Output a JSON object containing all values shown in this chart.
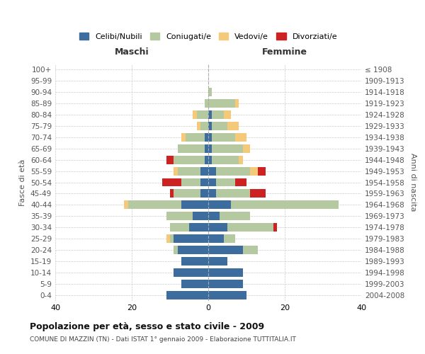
{
  "age_groups": [
    "0-4",
    "5-9",
    "10-14",
    "15-19",
    "20-24",
    "25-29",
    "30-34",
    "35-39",
    "40-44",
    "45-49",
    "50-54",
    "55-59",
    "60-64",
    "65-69",
    "70-74",
    "75-79",
    "80-84",
    "85-89",
    "90-94",
    "95-99",
    "100+"
  ],
  "birth_years": [
    "2004-2008",
    "1999-2003",
    "1994-1998",
    "1989-1993",
    "1984-1988",
    "1979-1983",
    "1974-1978",
    "1969-1973",
    "1964-1968",
    "1959-1963",
    "1954-1958",
    "1949-1953",
    "1944-1948",
    "1939-1943",
    "1934-1938",
    "1929-1933",
    "1924-1928",
    "1919-1923",
    "1914-1918",
    "1909-1913",
    "≤ 1908"
  ],
  "colors": {
    "celibi": "#3d6d9e",
    "coniugati": "#b5c9a0",
    "vedovi": "#f5c97a",
    "divorziati": "#cc2222"
  },
  "maschi": {
    "celibi": [
      11,
      7,
      9,
      7,
      8,
      9,
      5,
      4,
      7,
      2,
      2,
      2,
      1,
      1,
      1,
      0,
      0,
      0,
      0,
      0,
      0
    ],
    "coniugati": [
      0,
      0,
      0,
      0,
      1,
      1,
      5,
      7,
      14,
      7,
      5,
      6,
      8,
      7,
      5,
      2,
      3,
      1,
      0,
      0,
      0
    ],
    "vedovi": [
      0,
      0,
      0,
      0,
      0,
      1,
      0,
      0,
      1,
      0,
      0,
      1,
      0,
      0,
      1,
      1,
      1,
      0,
      0,
      0,
      0
    ],
    "divorziati": [
      0,
      0,
      0,
      0,
      0,
      0,
      0,
      0,
      0,
      1,
      5,
      0,
      2,
      0,
      0,
      0,
      0,
      0,
      0,
      0,
      0
    ]
  },
  "femmine": {
    "celibi": [
      10,
      9,
      9,
      5,
      9,
      4,
      5,
      3,
      6,
      2,
      2,
      2,
      1,
      1,
      1,
      1,
      1,
      0,
      0,
      0,
      0
    ],
    "coniugati": [
      0,
      0,
      0,
      0,
      4,
      3,
      12,
      8,
      28,
      9,
      5,
      9,
      7,
      8,
      6,
      4,
      3,
      7,
      1,
      0,
      0
    ],
    "vedovi": [
      0,
      0,
      0,
      0,
      0,
      0,
      0,
      0,
      0,
      0,
      0,
      2,
      1,
      2,
      3,
      3,
      2,
      1,
      0,
      0,
      0
    ],
    "divorziati": [
      0,
      0,
      0,
      0,
      0,
      0,
      1,
      0,
      0,
      4,
      3,
      2,
      0,
      0,
      0,
      0,
      0,
      0,
      0,
      0,
      0
    ]
  },
  "title": "Popolazione per età, sesso e stato civile - 2009",
  "subtitle": "COMUNE DI MAZZIN (TN) - Dati ISTAT 1° gennaio 2009 - Elaborazione TUTTITALIA.IT",
  "xlabel_left": "Maschi",
  "xlabel_right": "Femmine",
  "ylabel_left": "Fasce di età",
  "ylabel_right": "Anni di nascita",
  "xlim": 40,
  "legend_labels": [
    "Celibi/Nubili",
    "Coniugati/e",
    "Vedovi/e",
    "Divorziati/e"
  ],
  "background_color": "#ffffff"
}
